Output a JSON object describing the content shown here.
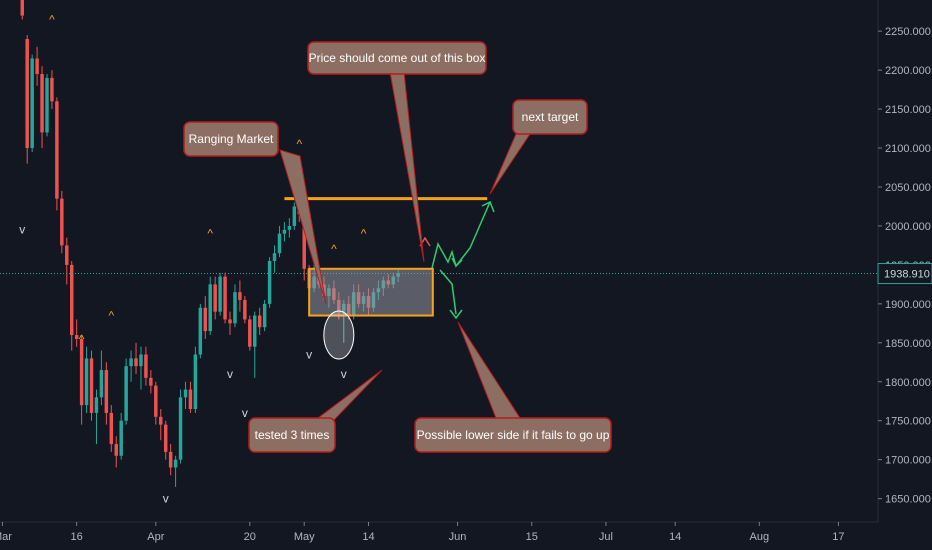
{
  "colors": {
    "background": "#131722",
    "up": "#26a69a",
    "down": "#ef5350",
    "axis_text": "#b2b5be",
    "level_line": "#f7a21b",
    "box_fill": "#9598a1",
    "callout_fill": "#8d6e63",
    "callout_border": "#b71c1c",
    "callout_text": "#ffffff",
    "price_line": "#26a69a",
    "price_tag": "#131722",
    "arrow_up": "#2ecc71",
    "arrow_red": "#ef5350"
  },
  "chart_data": {
    "type": "candlestick",
    "title": "",
    "xlabel": "",
    "ylabel": "",
    "ylim": [
      1620,
      2290
    ],
    "y_ticks": [
      "2250.000",
      "2200.000",
      "2150.000",
      "2100.000",
      "2050.000",
      "2000.000",
      "1950.000",
      "1900.000",
      "1850.000",
      "1800.000",
      "1750.000",
      "1700.000",
      "1650.000"
    ],
    "y_tick_values": [
      2250,
      2200,
      2150,
      2100,
      2050,
      2000,
      1950,
      1900,
      1850,
      1800,
      1750,
      1700,
      1650
    ],
    "x_ticks": [
      "Mar",
      "16",
      "Apr",
      "20",
      "May",
      "14",
      "Jun",
      "15",
      "Jul",
      "14",
      "Aug",
      "17"
    ],
    "x_tick_days": [
      0,
      15,
      31,
      50,
      61,
      74,
      92,
      107,
      122,
      136,
      153,
      169
    ],
    "x_range_days": [
      -0.5,
      177
    ],
    "current_price": "1938.910",
    "current_price_value": 1938.91,
    "candles": [
      {
        "d": 4,
        "o": 2290,
        "h": 2290,
        "l": 2265,
        "c": 2270
      },
      {
        "d": 5,
        "o": 2240,
        "h": 2245,
        "l": 2080,
        "c": 2100
      },
      {
        "d": 6,
        "o": 2100,
        "h": 2220,
        "l": 2095,
        "c": 2215
      },
      {
        "d": 7,
        "o": 2215,
        "h": 2230,
        "l": 2180,
        "c": 2195
      },
      {
        "d": 8,
        "o": 2195,
        "h": 2205,
        "l": 2100,
        "c": 2120
      },
      {
        "d": 9,
        "o": 2120,
        "h": 2195,
        "l": 2115,
        "c": 2190
      },
      {
        "d": 10,
        "o": 2190,
        "h": 2200,
        "l": 2150,
        "c": 2160
      },
      {
        "d": 11,
        "o": 2160,
        "h": 2165,
        "l": 2020,
        "c": 2035
      },
      {
        "d": 12,
        "o": 2035,
        "h": 2045,
        "l": 1965,
        "c": 1975
      },
      {
        "d": 13,
        "o": 1975,
        "h": 1985,
        "l": 1925,
        "c": 1950
      },
      {
        "d": 14,
        "o": 1950,
        "h": 1955,
        "l": 1840,
        "c": 1860
      },
      {
        "d": 15,
        "o": 1860,
        "h": 1880,
        "l": 1845,
        "c": 1855
      },
      {
        "d": 16,
        "o": 1855,
        "h": 1860,
        "l": 1745,
        "c": 1770
      },
      {
        "d": 17,
        "o": 1770,
        "h": 1845,
        "l": 1760,
        "c": 1830
      },
      {
        "d": 18,
        "o": 1830,
        "h": 1840,
        "l": 1750,
        "c": 1760
      },
      {
        "d": 19,
        "o": 1760,
        "h": 1790,
        "l": 1720,
        "c": 1780
      },
      {
        "d": 20,
        "o": 1780,
        "h": 1840,
        "l": 1770,
        "c": 1815
      },
      {
        "d": 21,
        "o": 1815,
        "h": 1825,
        "l": 1745,
        "c": 1760
      },
      {
        "d": 22,
        "o": 1760,
        "h": 1770,
        "l": 1710,
        "c": 1720
      },
      {
        "d": 23,
        "o": 1720,
        "h": 1730,
        "l": 1690,
        "c": 1705
      },
      {
        "d": 24,
        "o": 1705,
        "h": 1760,
        "l": 1700,
        "c": 1750
      },
      {
        "d": 25,
        "o": 1750,
        "h": 1830,
        "l": 1745,
        "c": 1820
      },
      {
        "d": 26,
        "o": 1820,
        "h": 1840,
        "l": 1800,
        "c": 1830
      },
      {
        "d": 27,
        "o": 1830,
        "h": 1850,
        "l": 1810,
        "c": 1820
      },
      {
        "d": 28,
        "o": 1820,
        "h": 1845,
        "l": 1790,
        "c": 1835
      },
      {
        "d": 29,
        "o": 1835,
        "h": 1845,
        "l": 1795,
        "c": 1805
      },
      {
        "d": 30,
        "o": 1805,
        "h": 1815,
        "l": 1785,
        "c": 1795
      },
      {
        "d": 31,
        "o": 1795,
        "h": 1800,
        "l": 1745,
        "c": 1755
      },
      {
        "d": 32,
        "o": 1755,
        "h": 1765,
        "l": 1725,
        "c": 1745
      },
      {
        "d": 33,
        "o": 1745,
        "h": 1750,
        "l": 1700,
        "c": 1710
      },
      {
        "d": 34,
        "o": 1710,
        "h": 1720,
        "l": 1680,
        "c": 1690
      },
      {
        "d": 35,
        "o": 1690,
        "h": 1705,
        "l": 1665,
        "c": 1700
      },
      {
        "d": 36,
        "o": 1700,
        "h": 1790,
        "l": 1695,
        "c": 1780
      },
      {
        "d": 37,
        "o": 1780,
        "h": 1800,
        "l": 1765,
        "c": 1790
      },
      {
        "d": 38,
        "o": 1790,
        "h": 1800,
        "l": 1760,
        "c": 1765
      },
      {
        "d": 39,
        "o": 1765,
        "h": 1845,
        "l": 1760,
        "c": 1835
      },
      {
        "d": 40,
        "o": 1835,
        "h": 1900,
        "l": 1830,
        "c": 1895
      },
      {
        "d": 41,
        "o": 1895,
        "h": 1910,
        "l": 1855,
        "c": 1865
      },
      {
        "d": 42,
        "o": 1865,
        "h": 1935,
        "l": 1860,
        "c": 1925
      },
      {
        "d": 43,
        "o": 1925,
        "h": 1935,
        "l": 1880,
        "c": 1890
      },
      {
        "d": 44,
        "o": 1890,
        "h": 1940,
        "l": 1885,
        "c": 1935
      },
      {
        "d": 45,
        "o": 1935,
        "h": 1940,
        "l": 1875,
        "c": 1880
      },
      {
        "d": 46,
        "o": 1880,
        "h": 1890,
        "l": 1860,
        "c": 1875
      },
      {
        "d": 47,
        "o": 1875,
        "h": 1925,
        "l": 1870,
        "c": 1915
      },
      {
        "d": 48,
        "o": 1915,
        "h": 1930,
        "l": 1890,
        "c": 1905
      },
      {
        "d": 49,
        "o": 1905,
        "h": 1910,
        "l": 1875,
        "c": 1880
      },
      {
        "d": 50,
        "o": 1880,
        "h": 1885,
        "l": 1840,
        "c": 1845
      },
      {
        "d": 51,
        "o": 1845,
        "h": 1890,
        "l": 1805,
        "c": 1885
      },
      {
        "d": 52,
        "o": 1885,
        "h": 1895,
        "l": 1860,
        "c": 1870
      },
      {
        "d": 53,
        "o": 1870,
        "h": 1905,
        "l": 1865,
        "c": 1900
      },
      {
        "d": 54,
        "o": 1900,
        "h": 1960,
        "l": 1895,
        "c": 1955
      },
      {
        "d": 55,
        "o": 1955,
        "h": 1975,
        "l": 1940,
        "c": 1965
      },
      {
        "d": 56,
        "o": 1965,
        "h": 2000,
        "l": 1960,
        "c": 1990
      },
      {
        "d": 57,
        "o": 1990,
        "h": 2005,
        "l": 1980,
        "c": 1995
      },
      {
        "d": 58,
        "o": 1995,
        "h": 2010,
        "l": 1985,
        "c": 2000
      },
      {
        "d": 59,
        "o": 2000,
        "h": 2030,
        "l": 1995,
        "c": 2025
      },
      {
        "d": 60,
        "o": 2025,
        "h": 2035,
        "l": 2005,
        "c": 2015
      },
      {
        "d": 61,
        "o": 2025,
        "h": 2030,
        "l": 1930,
        "c": 1945
      },
      {
        "d": 62,
        "o": 1945,
        "h": 1950,
        "l": 1910,
        "c": 1920
      },
      {
        "d": 63,
        "o": 1920,
        "h": 1960,
        "l": 1915,
        "c": 1935
      },
      {
        "d": 64,
        "o": 1935,
        "h": 1940,
        "l": 1920,
        "c": 1925
      },
      {
        "d": 65,
        "o": 1925,
        "h": 1935,
        "l": 1905,
        "c": 1910
      },
      {
        "d": 66,
        "o": 1910,
        "h": 1925,
        "l": 1895,
        "c": 1920
      },
      {
        "d": 67,
        "o": 1920,
        "h": 1930,
        "l": 1900,
        "c": 1905
      },
      {
        "d": 68,
        "o": 1905,
        "h": 1915,
        "l": 1880,
        "c": 1890
      },
      {
        "d": 69,
        "o": 1890,
        "h": 1905,
        "l": 1850,
        "c": 1900
      },
      {
        "d": 70,
        "o": 1900,
        "h": 1910,
        "l": 1880,
        "c": 1885
      },
      {
        "d": 71,
        "o": 1885,
        "h": 1925,
        "l": 1880,
        "c": 1915
      },
      {
        "d": 72,
        "o": 1915,
        "h": 1925,
        "l": 1895,
        "c": 1900
      },
      {
        "d": 73,
        "o": 1900,
        "h": 1915,
        "l": 1890,
        "c": 1910
      },
      {
        "d": 74,
        "o": 1910,
        "h": 1920,
        "l": 1885,
        "c": 1895
      },
      {
        "d": 75,
        "o": 1895,
        "h": 1920,
        "l": 1890,
        "c": 1915
      },
      {
        "d": 76,
        "o": 1915,
        "h": 1930,
        "l": 1905,
        "c": 1920
      },
      {
        "d": 77,
        "o": 1920,
        "h": 1935,
        "l": 1910,
        "c": 1930
      },
      {
        "d": 78,
        "o": 1930,
        "h": 1938,
        "l": 1920,
        "c": 1925
      },
      {
        "d": 79,
        "o": 1925,
        "h": 1940,
        "l": 1920,
        "c": 1935
      },
      {
        "d": 80,
        "o": 1935,
        "h": 1945,
        "l": 1928,
        "c": 1939
      }
    ],
    "fractal_markers": [
      {
        "d": 4,
        "price": 1990,
        "dir": "down"
      },
      {
        "d": 10,
        "price": 2260,
        "dir": "up"
      },
      {
        "d": 16,
        "price": 1850,
        "dir": "up"
      },
      {
        "d": 22,
        "price": 1880,
        "dir": "up"
      },
      {
        "d": 33,
        "price": 1645,
        "dir": "down"
      },
      {
        "d": 42,
        "price": 1985,
        "dir": "up"
      },
      {
        "d": 46,
        "price": 1805,
        "dir": "down"
      },
      {
        "d": 60,
        "price": 2100,
        "dir": "up"
      },
      {
        "d": 62,
        "price": 1830,
        "dir": "down"
      },
      {
        "d": 67,
        "price": 1965,
        "dir": "up"
      },
      {
        "d": 69,
        "price": 1805,
        "dir": "down"
      },
      {
        "d": 73,
        "price": 1985,
        "dir": "up"
      },
      {
        "d": 49,
        "price": 1755,
        "dir": "down"
      }
    ],
    "annotations": {
      "resistance_line": {
        "price": 2035,
        "d_start": 57,
        "d_end": 98
      },
      "range_box": {
        "price_top": 1945,
        "price_bottom": 1885,
        "d_start": 62,
        "d_end": 87
      },
      "test_ellipse": {
        "d": 68,
        "price": 1860
      },
      "callouts": [
        {
          "text": "Price should come out of this box"
        },
        {
          "text": "next target"
        },
        {
          "text": "Ranging Market"
        },
        {
          "text": "tested 3 times"
        },
        {
          "text": "Possible lower side if it fails to go up"
        }
      ]
    }
  }
}
